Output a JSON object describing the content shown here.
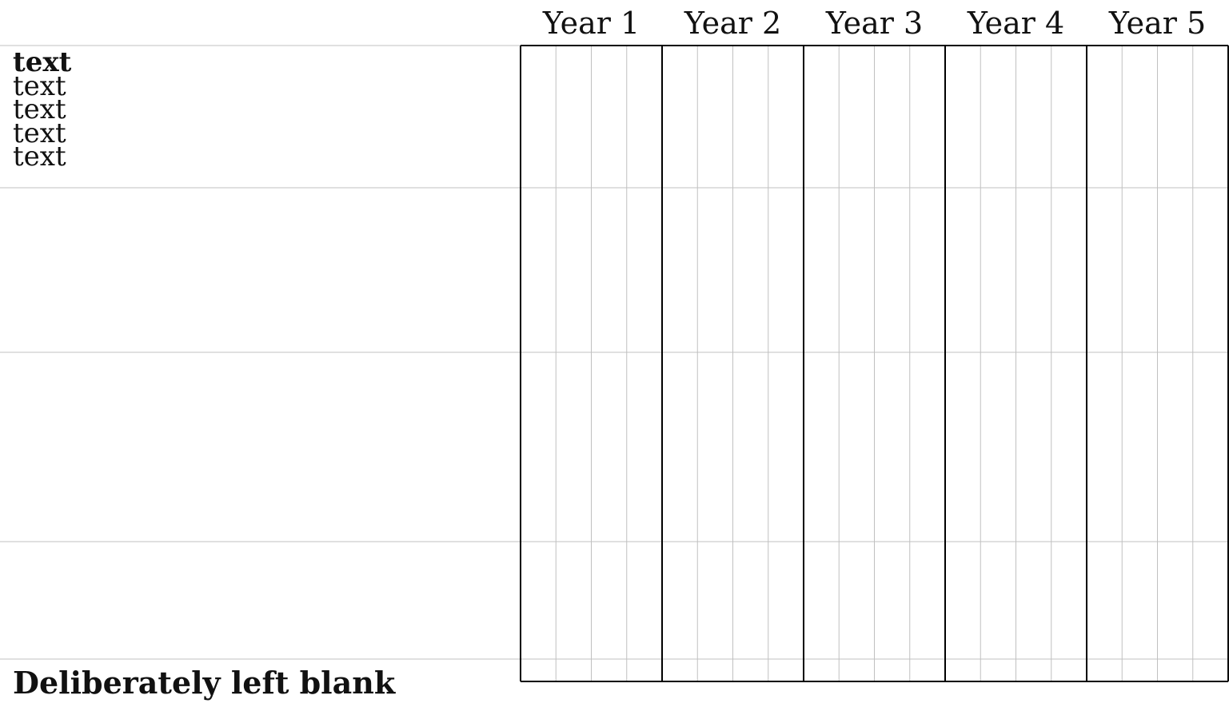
{
  "header": {
    "years": [
      "Year 1",
      "Year 2",
      "Year 3",
      "Year 4",
      "Year 5"
    ]
  },
  "rows": [
    {
      "lines": [
        {
          "text": "text",
          "bold": true
        },
        {
          "text": "text",
          "bold": false
        },
        {
          "text": "text",
          "bold": false
        },
        {
          "text": "text",
          "bold": false
        },
        {
          "text": "text",
          "bold": false
        }
      ]
    },
    {
      "lines": []
    },
    {
      "lines": []
    },
    {
      "lines": []
    }
  ],
  "footer": {
    "label": "Deliberately left blank"
  },
  "grid": {
    "subdivisions_per_year": 4,
    "major_line_color": "#000000",
    "minor_line_color": "#c0c0c0"
  }
}
